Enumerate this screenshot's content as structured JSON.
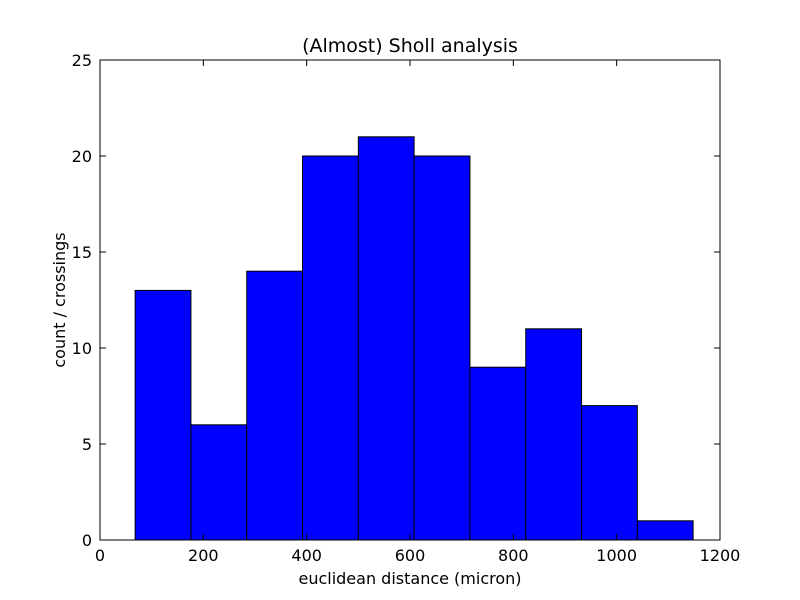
{
  "chart_data": {
    "type": "bar",
    "subtype": "histogram",
    "title": "(Almost) Sholl analysis",
    "xlabel": "euclidean distance (micron)",
    "ylabel": "count / crossings",
    "xlim": [
      0,
      1200
    ],
    "ylim": [
      0,
      25
    ],
    "xticks": [
      "0",
      "200",
      "400",
      "600",
      "800",
      "1000",
      "1200"
    ],
    "yticks": [
      "0",
      "5",
      "10",
      "15",
      "20",
      "25"
    ],
    "grid": false,
    "bar_color": "#0000ff",
    "edge_color": "#000000",
    "bins": [
      {
        "x0": 68,
        "x1": 176,
        "count": 13
      },
      {
        "x0": 176,
        "x1": 284,
        "count": 6
      },
      {
        "x0": 284,
        "x1": 392,
        "count": 14
      },
      {
        "x0": 392,
        "x1": 500,
        "count": 20
      },
      {
        "x0": 500,
        "x1": 608,
        "count": 21
      },
      {
        "x0": 608,
        "x1": 716,
        "count": 20
      },
      {
        "x0": 716,
        "x1": 824,
        "count": 9
      },
      {
        "x0": 824,
        "x1": 932,
        "count": 11
      },
      {
        "x0": 932,
        "x1": 1040,
        "count": 7
      },
      {
        "x0": 1040,
        "x1": 1148,
        "count": 1
      }
    ]
  }
}
